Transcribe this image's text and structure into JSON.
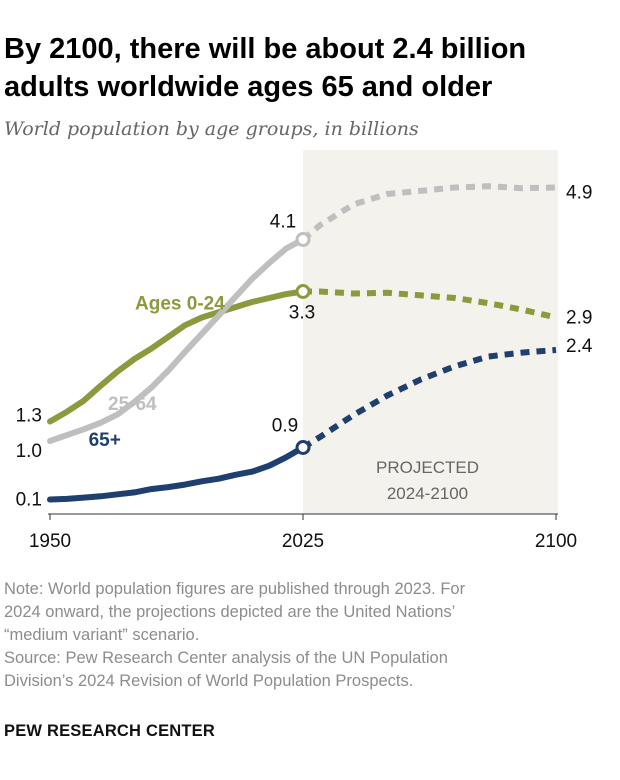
{
  "chart_data": {
    "type": "line",
    "title": "By 2100, there will be about 2.4 billion adults worldwide ages 65 and older",
    "subtitle": "World population by age groups, in billions",
    "xlabel": "",
    "ylabel": "",
    "xlim": [
      1950,
      2100
    ],
    "ylim": [
      0,
      5.2
    ],
    "x_ticks": [
      "1950",
      "2025",
      "2100"
    ],
    "grid": false,
    "projection_start": 2024,
    "projection_band_label": [
      "PROJECTED",
      "2024-2100"
    ],
    "series": [
      {
        "name": "Ages 0-24",
        "color": "#8a9a3c",
        "x": [
          1950,
          1955,
          1960,
          1965,
          1970,
          1975,
          1980,
          1985,
          1990,
          1995,
          2000,
          2005,
          2010,
          2015,
          2020,
          2025
        ],
        "values": [
          1.3,
          1.45,
          1.62,
          1.85,
          2.07,
          2.26,
          2.42,
          2.6,
          2.78,
          2.9,
          2.98,
          3.06,
          3.14,
          3.2,
          3.26,
          3.3
        ],
        "proj_x": [
          2025,
          2030,
          2040,
          2050,
          2060,
          2070,
          2080,
          2090,
          2100
        ],
        "proj_values": [
          3.3,
          3.3,
          3.27,
          3.28,
          3.24,
          3.2,
          3.12,
          3.02,
          2.9
        ],
        "start_label": "1.3",
        "mid_label": "3.3",
        "end_label": "2.9"
      },
      {
        "name": "25-64",
        "color": "#bfbfbf",
        "x": [
          1950,
          1955,
          1960,
          1965,
          1970,
          1975,
          1980,
          1985,
          1990,
          1995,
          2000,
          2005,
          2010,
          2015,
          2020,
          2025
        ],
        "values": [
          1.0,
          1.09,
          1.18,
          1.28,
          1.41,
          1.6,
          1.82,
          2.08,
          2.37,
          2.65,
          2.93,
          3.22,
          3.5,
          3.74,
          3.96,
          4.1
        ],
        "proj_x": [
          2025,
          2030,
          2040,
          2050,
          2060,
          2070,
          2080,
          2090,
          2100
        ],
        "proj_values": [
          4.1,
          4.32,
          4.64,
          4.8,
          4.85,
          4.9,
          4.92,
          4.89,
          4.9
        ],
        "start_label": "1.0",
        "mid_label": "4.1",
        "end_label": "4.9"
      },
      {
        "name": "65+",
        "color": "#1f3f6f",
        "x": [
          1950,
          1955,
          1960,
          1965,
          1970,
          1975,
          1980,
          1985,
          1990,
          1995,
          2000,
          2005,
          2010,
          2015,
          2020,
          2025
        ],
        "values": [
          0.1,
          0.11,
          0.13,
          0.15,
          0.18,
          0.21,
          0.26,
          0.29,
          0.33,
          0.38,
          0.42,
          0.48,
          0.53,
          0.62,
          0.75,
          0.9
        ],
        "proj_x": [
          2025,
          2030,
          2040,
          2050,
          2060,
          2070,
          2080,
          2090,
          2100
        ],
        "proj_values": [
          0.9,
          1.06,
          1.4,
          1.7,
          1.95,
          2.15,
          2.3,
          2.36,
          2.4
        ],
        "start_label": "0.1",
        "mid_label": "0.9",
        "end_label": "2.4"
      }
    ]
  },
  "note": [
    "Note: World population figures are published through 2023. For",
    "2024 onward, the projections depicted are the United Nations’",
    "“medium variant” scenario.",
    "Source: Pew Research Center analysis of the UN Population",
    "Division’s 2024 Revision of World Population Prospects."
  ],
  "brand": "PEW RESEARCH CENTER"
}
